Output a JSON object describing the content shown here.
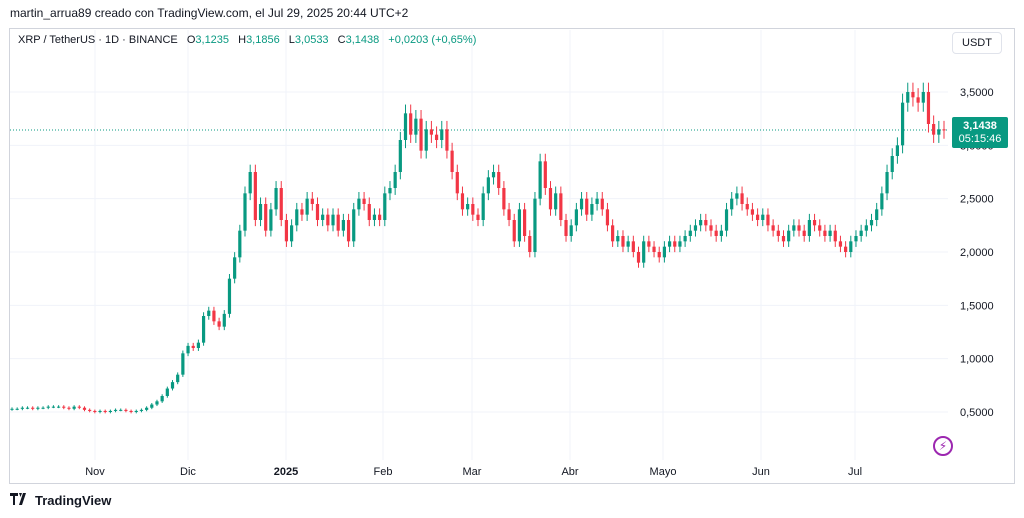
{
  "credit": "martin_arrua89 creado con TradingView.com, el Jul 29, 2025 20:44 UTC+2",
  "legend": {
    "symbol": "XRP / TetherUS · 1D · BINANCE",
    "open_label": "O",
    "open": "3,1235",
    "high_label": "H",
    "high": "3,1856",
    "low_label": "L",
    "low": "3,0533",
    "close_label": "C",
    "close": "3,1438",
    "change": "+0,0203 (+0,65%)"
  },
  "currency_button": "USDT",
  "last_price": {
    "price": "3,1438",
    "countdown": "05:15:46"
  },
  "brand": "TradingView",
  "colors": {
    "up": "#089981",
    "down": "#f23645",
    "grid": "#f0f3fa",
    "accent": "#9c27b0"
  },
  "icons": {
    "flash": "flash-icon",
    "logo": "tradingview-logo-icon"
  },
  "chart_data": {
    "type": "candlestick",
    "title": "XRP / TetherUS · 1D · BINANCE",
    "x_ticks": [
      "Nov",
      "Dic",
      "2025",
      "Feb",
      "Mar",
      "Abr",
      "Mayo",
      "Jun",
      "Jul"
    ],
    "y_ticks": [
      "0,5000",
      "1,0000",
      "1,5000",
      "2,0000",
      "2,5000",
      "3,0000",
      "3,5000"
    ],
    "y_tick_values": [
      0.5,
      1.0,
      1.5,
      2.0,
      2.5,
      3.0,
      3.5
    ],
    "ylim": [
      0.05,
      3.8
    ],
    "last_value": 3.1438,
    "grid": true,
    "closes": [
      0.53,
      0.53,
      0.54,
      0.54,
      0.53,
      0.54,
      0.54,
      0.55,
      0.55,
      0.55,
      0.54,
      0.53,
      0.55,
      0.54,
      0.52,
      0.51,
      0.5,
      0.51,
      0.5,
      0.51,
      0.52,
      0.52,
      0.51,
      0.5,
      0.51,
      0.52,
      0.54,
      0.57,
      0.6,
      0.65,
      0.72,
      0.78,
      0.85,
      1.05,
      1.12,
      1.1,
      1.15,
      1.4,
      1.45,
      1.35,
      1.3,
      1.42,
      1.75,
      1.95,
      2.2,
      2.55,
      2.75,
      2.3,
      2.45,
      2.2,
      2.4,
      2.6,
      2.3,
      2.1,
      2.25,
      2.4,
      2.35,
      2.5,
      2.45,
      2.3,
      2.35,
      2.25,
      2.35,
      2.2,
      2.3,
      2.1,
      2.4,
      2.5,
      2.45,
      2.3,
      2.35,
      2.3,
      2.55,
      2.6,
      2.75,
      3.05,
      3.3,
      3.1,
      3.25,
      2.95,
      3.15,
      3.1,
      3.05,
      3.15,
      2.95,
      2.75,
      2.55,
      2.4,
      2.45,
      2.35,
      2.3,
      2.55,
      2.7,
      2.75,
      2.6,
      2.4,
      2.3,
      2.1,
      2.4,
      2.15,
      2.0,
      2.5,
      2.85,
      2.6,
      2.4,
      2.55,
      2.3,
      2.15,
      2.25,
      2.4,
      2.5,
      2.35,
      2.45,
      2.5,
      2.4,
      2.25,
      2.1,
      2.15,
      2.05,
      2.1,
      2.0,
      1.9,
      2.1,
      2.05,
      2.0,
      1.95,
      2.05,
      2.1,
      2.05,
      2.1,
      2.15,
      2.2,
      2.25,
      2.3,
      2.25,
      2.2,
      2.15,
      2.2,
      2.4,
      2.5,
      2.55,
      2.45,
      2.4,
      2.35,
      2.3,
      2.35,
      2.25,
      2.2,
      2.15,
      2.1,
      2.2,
      2.25,
      2.2,
      2.15,
      2.3,
      2.25,
      2.2,
      2.15,
      2.2,
      2.1,
      2.05,
      2.0,
      2.1,
      2.15,
      2.2,
      2.25,
      2.3,
      2.4,
      2.55,
      2.75,
      2.9,
      3.0,
      3.4,
      3.5,
      3.45,
      3.4,
      3.5,
      3.2,
      3.1,
      3.15,
      3.14
    ]
  }
}
